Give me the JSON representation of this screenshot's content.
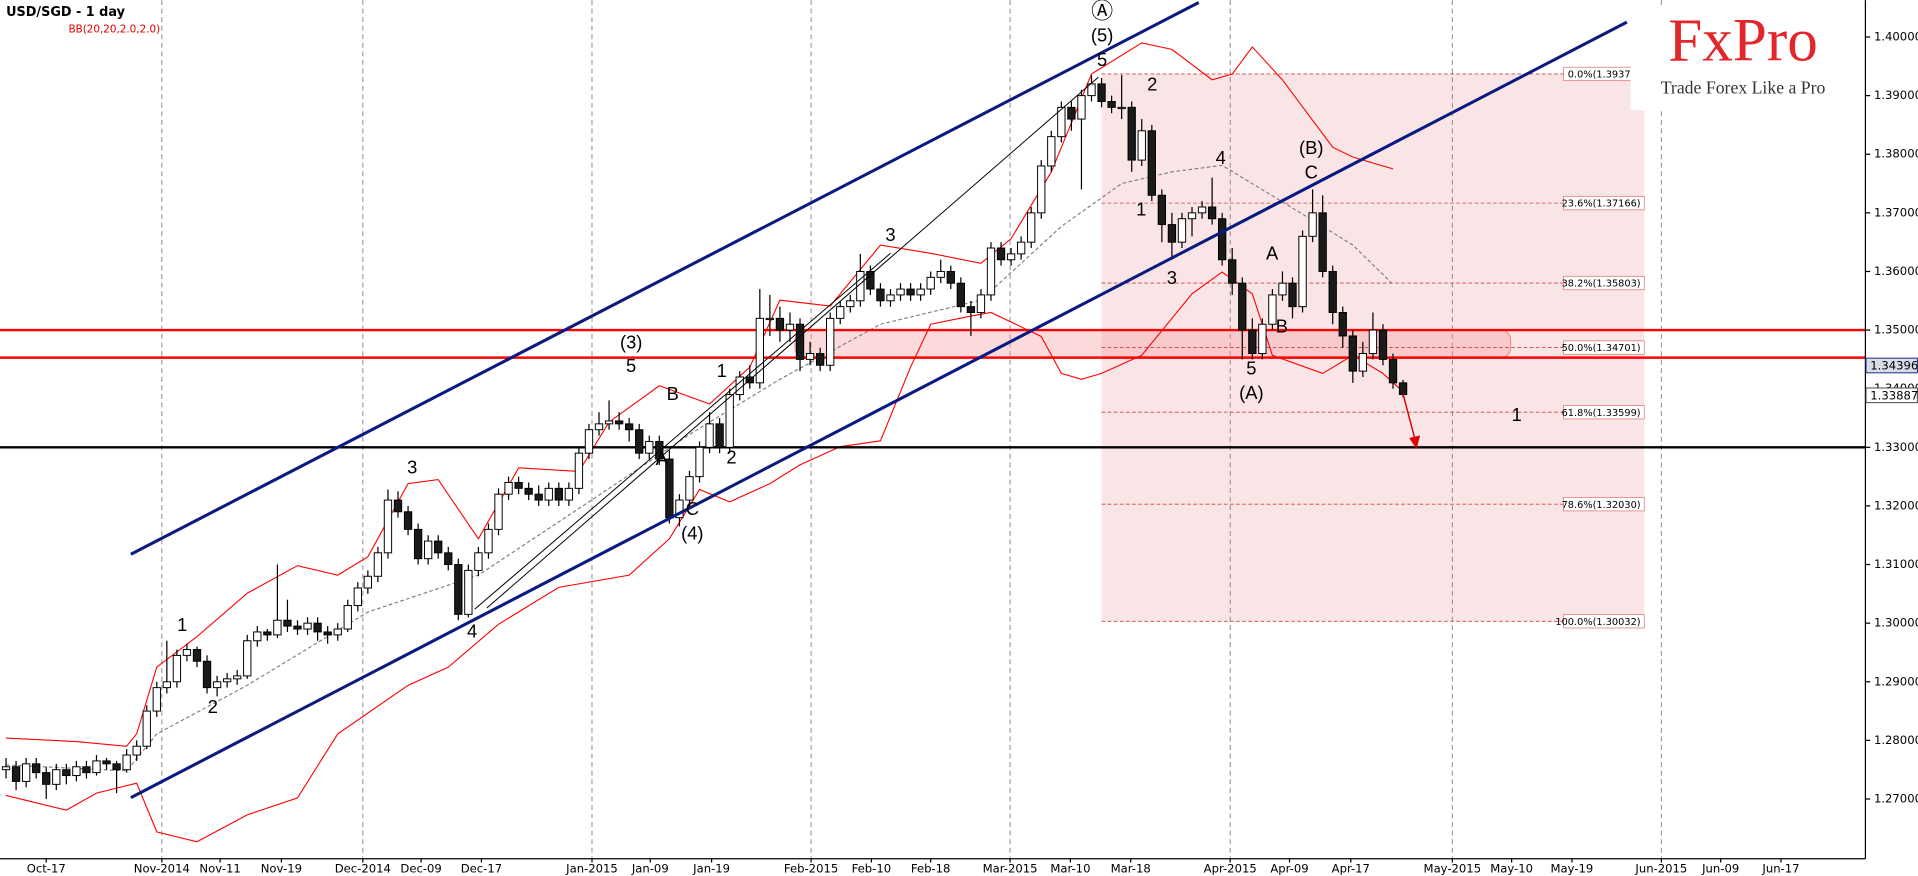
{
  "title": "USD/SGD - 1 day",
  "indicator": "BB(20,20,2.0,2.0)",
  "logo": {
    "name": "FxPro",
    "tagline": "Trade Forex Like a Pro"
  },
  "chart_data": {
    "type": "candlestick",
    "xlim": [
      -0.6,
      185
    ],
    "ylim": [
      1.2598,
      1.4063
    ],
    "xticks": [
      {
        "value": 4.0,
        "label": "Oct-17"
      },
      {
        "value": 15.5,
        "label": "Nov-2014",
        "major": true
      },
      {
        "value": 21.3,
        "label": "Nov-11"
      },
      {
        "value": 27.4,
        "label": "Nov-19"
      },
      {
        "value": 35.5,
        "label": "Dec-2014",
        "major": true
      },
      {
        "value": 41.3,
        "label": "Dec-09"
      },
      {
        "value": 47.3,
        "label": "Dec-17"
      },
      {
        "value": 58.3,
        "label": "Jan-2015",
        "major": true
      },
      {
        "value": 64.1,
        "label": "Jan-09"
      },
      {
        "value": 70.2,
        "label": "Jan-19"
      },
      {
        "value": 80.1,
        "label": "Feb-2015",
        "major": true
      },
      {
        "value": 86.1,
        "label": "Feb-10"
      },
      {
        "value": 92.0,
        "label": "Feb-18"
      },
      {
        "value": 99.9,
        "label": "Mar-2015",
        "major": true
      },
      {
        "value": 105.9,
        "label": "Mar-10"
      },
      {
        "value": 111.9,
        "label": "Mar-18"
      },
      {
        "value": 121.8,
        "label": "Apr-2015",
        "major": true
      },
      {
        "value": 127.7,
        "label": "Apr-09"
      },
      {
        "value": 133.8,
        "label": "Apr-17"
      },
      {
        "value": 143.9,
        "label": "May-2015",
        "major": true
      },
      {
        "value": 149.8,
        "label": "May-10"
      },
      {
        "value": 155.8,
        "label": "May-19"
      },
      {
        "value": 164.7,
        "label": "Jun-2015",
        "major": true
      },
      {
        "value": 170.6,
        "label": "Jun-09"
      },
      {
        "value": 176.6,
        "label": "Jun-17"
      }
    ],
    "yticks": [
      {
        "value": 1.27,
        "label": "1.27000"
      },
      {
        "value": 1.28,
        "label": "1.28000"
      },
      {
        "value": 1.29,
        "label": "1.29000"
      },
      {
        "value": 1.3,
        "label": "1.30000"
      },
      {
        "value": 1.31,
        "label": "1.31000"
      },
      {
        "value": 1.32,
        "label": "1.32000"
      },
      {
        "value": 1.33,
        "label": "1.33000"
      },
      {
        "value": 1.34,
        "label": "1.34000"
      },
      {
        "value": 1.35,
        "label": "1.35000"
      },
      {
        "value": 1.36,
        "label": "1.36000"
      },
      {
        "value": 1.37,
        "label": "1.37000"
      },
      {
        "value": 1.38,
        "label": "1.38000"
      },
      {
        "value": 1.39,
        "label": "1.39000"
      },
      {
        "value": 1.4,
        "label": "1.40000"
      }
    ],
    "colors": {
      "up": "#ffffff",
      "down": "#1a1a1a",
      "outline": "#000000",
      "band": "#ff0000",
      "mid": "#7a7a7a",
      "channel": "#0a1a80"
    },
    "candles": [
      [
        1.275,
        1.277,
        1.2735,
        1.2755
      ],
      [
        1.2755,
        1.2765,
        1.2715,
        1.273
      ],
      [
        1.273,
        1.277,
        1.272,
        1.276
      ],
      [
        1.276,
        1.277,
        1.2735,
        1.2745
      ],
      [
        1.2745,
        1.2755,
        1.27,
        1.2725
      ],
      [
        1.2725,
        1.276,
        1.2715,
        1.275
      ],
      [
        1.275,
        1.276,
        1.2725,
        1.274
      ],
      [
        1.274,
        1.2765,
        1.273,
        1.2755
      ],
      [
        1.2755,
        1.2765,
        1.2735,
        1.2745
      ],
      [
        1.2745,
        1.2775,
        1.274,
        1.2765
      ],
      [
        1.2765,
        1.277,
        1.275,
        1.276
      ],
      [
        1.276,
        1.2765,
        1.271,
        1.275
      ],
      [
        1.275,
        1.2785,
        1.2745,
        1.2775
      ],
      [
        1.2775,
        1.28,
        1.2765,
        1.279
      ],
      [
        1.279,
        1.286,
        1.2785,
        1.285
      ],
      [
        1.285,
        1.29,
        1.284,
        1.289
      ],
      [
        1.289,
        1.297,
        1.288,
        1.29
      ],
      [
        1.29,
        1.2955,
        1.289,
        1.2945
      ],
      [
        1.2945,
        1.2965,
        1.2935,
        1.2955
      ],
      [
        1.2955,
        1.296,
        1.2925,
        1.2935
      ],
      [
        1.2935,
        1.2945,
        1.288,
        1.289
      ],
      [
        1.289,
        1.291,
        1.2875,
        1.29
      ],
      [
        1.29,
        1.2915,
        1.289,
        1.2905
      ],
      [
        1.2905,
        1.292,
        1.2895,
        1.291
      ],
      [
        1.291,
        1.298,
        1.2905,
        1.297
      ],
      [
        1.297,
        1.2995,
        1.296,
        1.2985
      ],
      [
        1.2985,
        1.299,
        1.297,
        1.298
      ],
      [
        1.298,
        1.31,
        1.2975,
        1.3005
      ],
      [
        1.3005,
        1.304,
        1.2985,
        1.2995
      ],
      [
        1.2995,
        1.3005,
        1.298,
        1.299
      ],
      [
        1.299,
        1.301,
        1.298,
        1.3
      ],
      [
        1.3,
        1.301,
        1.297,
        1.2985
      ],
      [
        1.2985,
        1.2995,
        1.2965,
        1.298
      ],
      [
        1.298,
        1.3,
        1.297,
        1.299
      ],
      [
        1.299,
        1.304,
        1.2985,
        1.303
      ],
      [
        1.303,
        1.307,
        1.302,
        1.306
      ],
      [
        1.306,
        1.309,
        1.305,
        1.308
      ],
      [
        1.308,
        1.313,
        1.307,
        1.312
      ],
      [
        1.312,
        1.3228,
        1.311,
        1.321
      ],
      [
        1.321,
        1.3225,
        1.318,
        1.319
      ],
      [
        1.319,
        1.32,
        1.315,
        1.316
      ],
      [
        1.316,
        1.317,
        1.31,
        1.311
      ],
      [
        1.311,
        1.315,
        1.31,
        1.314
      ],
      [
        1.314,
        1.315,
        1.311,
        1.312
      ],
      [
        1.312,
        1.313,
        1.309,
        1.31
      ],
      [
        1.31,
        1.311,
        1.3005,
        1.3015
      ],
      [
        1.3015,
        1.31,
        1.301,
        1.309
      ],
      [
        1.309,
        1.313,
        1.308,
        1.312
      ],
      [
        1.312,
        1.317,
        1.311,
        1.316
      ],
      [
        1.316,
        1.323,
        1.315,
        1.322
      ],
      [
        1.322,
        1.325,
        1.321,
        1.324
      ],
      [
        1.324,
        1.325,
        1.322,
        1.323
      ],
      [
        1.323,
        1.324,
        1.321,
        1.322
      ],
      [
        1.322,
        1.3235,
        1.32,
        1.321
      ],
      [
        1.321,
        1.324,
        1.32,
        1.323
      ],
      [
        1.323,
        1.324,
        1.32,
        1.321
      ],
      [
        1.321,
        1.324,
        1.32,
        1.323
      ],
      [
        1.323,
        1.33,
        1.322,
        1.329
      ],
      [
        1.329,
        1.334,
        1.328,
        1.333
      ],
      [
        1.333,
        1.336,
        1.332,
        1.334
      ],
      [
        1.334,
        1.338,
        1.333,
        1.3345
      ],
      [
        1.3345,
        1.336,
        1.333,
        1.334
      ],
      [
        1.334,
        1.335,
        1.331,
        1.333
      ],
      [
        1.333,
        1.334,
        1.328,
        1.329
      ],
      [
        1.329,
        1.332,
        1.328,
        1.331
      ],
      [
        1.331,
        1.332,
        1.327,
        1.328
      ],
      [
        1.328,
        1.3295,
        1.317,
        1.318
      ],
      [
        1.318,
        1.322,
        1.3165,
        1.321
      ],
      [
        1.321,
        1.326,
        1.32,
        1.325
      ],
      [
        1.325,
        1.331,
        1.324,
        1.33
      ],
      [
        1.33,
        1.336,
        1.329,
        1.334
      ],
      [
        1.334,
        1.335,
        1.329,
        1.33
      ],
      [
        1.33,
        1.34,
        1.329,
        1.339
      ],
      [
        1.339,
        1.343,
        1.338,
        1.342
      ],
      [
        1.342,
        1.344,
        1.34,
        1.341
      ],
      [
        1.341,
        1.357,
        1.34,
        1.352
      ],
      [
        1.352,
        1.356,
        1.349,
        1.352
      ],
      [
        1.352,
        1.354,
        1.348,
        1.35
      ],
      [
        1.35,
        1.353,
        1.348,
        1.351
      ],
      [
        1.351,
        1.352,
        1.343,
        1.345
      ],
      [
        1.345,
        1.348,
        1.344,
        1.346
      ],
      [
        1.346,
        1.347,
        1.343,
        1.344
      ],
      [
        1.344,
        1.353,
        1.343,
        1.352
      ],
      [
        1.352,
        1.355,
        1.351,
        1.354
      ],
      [
        1.354,
        1.356,
        1.353,
        1.355
      ],
      [
        1.355,
        1.363,
        1.354,
        1.36
      ],
      [
        1.36,
        1.361,
        1.356,
        1.357
      ],
      [
        1.357,
        1.358,
        1.354,
        1.355
      ],
      [
        1.355,
        1.357,
        1.354,
        1.356
      ],
      [
        1.356,
        1.358,
        1.355,
        1.357
      ],
      [
        1.357,
        1.358,
        1.355,
        1.356
      ],
      [
        1.356,
        1.358,
        1.355,
        1.357
      ],
      [
        1.357,
        1.36,
        1.356,
        1.359
      ],
      [
        1.359,
        1.362,
        1.358,
        1.36
      ],
      [
        1.36,
        1.361,
        1.357,
        1.358
      ],
      [
        1.358,
        1.359,
        1.353,
        1.354
      ],
      [
        1.354,
        1.355,
        1.349,
        1.353
      ],
      [
        1.353,
        1.357,
        1.352,
        1.356
      ],
      [
        1.356,
        1.365,
        1.355,
        1.364
      ],
      [
        1.364,
        1.365,
        1.361,
        1.362
      ],
      [
        1.362,
        1.364,
        1.361,
        1.363
      ],
      [
        1.363,
        1.366,
        1.362,
        1.365
      ],
      [
        1.365,
        1.371,
        1.364,
        1.37
      ],
      [
        1.37,
        1.379,
        1.369,
        1.378
      ],
      [
        1.378,
        1.384,
        1.377,
        1.383
      ],
      [
        1.383,
        1.389,
        1.382,
        1.388
      ],
      [
        1.388,
        1.389,
        1.384,
        1.386
      ],
      [
        1.386,
        1.391,
        1.374,
        1.39
      ],
      [
        1.39,
        1.3935,
        1.389,
        1.392
      ],
      [
        1.392,
        1.393,
        1.388,
        1.389
      ],
      [
        1.389,
        1.39,
        1.387,
        1.388
      ],
      [
        1.388,
        1.3935,
        1.386,
        1.388
      ],
      [
        1.388,
        1.389,
        1.377,
        1.379
      ],
      [
        1.379,
        1.386,
        1.378,
        1.384
      ],
      [
        1.384,
        1.385,
        1.372,
        1.373
      ],
      [
        1.373,
        1.374,
        1.365,
        1.368
      ],
      [
        1.368,
        1.37,
        1.362,
        1.365
      ],
      [
        1.365,
        1.37,
        1.364,
        1.369
      ],
      [
        1.369,
        1.371,
        1.366,
        1.37
      ],
      [
        1.37,
        1.372,
        1.369,
        1.371
      ],
      [
        1.371,
        1.376,
        1.368,
        1.369
      ],
      [
        1.369,
        1.37,
        1.361,
        1.362
      ],
      [
        1.362,
        1.364,
        1.356,
        1.358
      ],
      [
        1.358,
        1.359,
        1.345,
        1.35
      ],
      [
        1.35,
        1.352,
        1.345,
        1.346
      ],
      [
        1.346,
        1.352,
        1.345,
        1.351
      ],
      [
        1.351,
        1.357,
        1.35,
        1.356
      ],
      [
        1.356,
        1.36,
        1.355,
        1.358
      ],
      [
        1.358,
        1.359,
        1.352,
        1.354
      ],
      [
        1.354,
        1.367,
        1.353,
        1.366
      ],
      [
        1.366,
        1.374,
        1.365,
        1.37
      ],
      [
        1.37,
        1.373,
        1.359,
        1.36
      ],
      [
        1.36,
        1.361,
        1.351,
        1.353
      ],
      [
        1.353,
        1.354,
        1.347,
        1.349
      ],
      [
        1.349,
        1.35,
        1.341,
        1.343
      ],
      [
        1.343,
        1.348,
        1.342,
        1.346
      ],
      [
        1.346,
        1.353,
        1.345,
        1.35
      ],
      [
        1.35,
        1.351,
        1.344,
        1.345
      ],
      [
        1.345,
        1.346,
        1.34,
        1.341
      ],
      [
        1.341,
        1.3415,
        1.3385,
        1.339
      ]
    ],
    "bands": {
      "upper": {
        "x": [
          0,
          7,
          12,
          13,
          15,
          19,
          24,
          29,
          33,
          36,
          40,
          43,
          47,
          51,
          57,
          60,
          65,
          70,
          74,
          77,
          82,
          87,
          92,
          97,
          100,
          104,
          108,
          113,
          116,
          120,
          122,
          124,
          127,
          132,
          134,
          138
        ],
        "values": [
          1.2804,
          1.2798,
          1.279,
          1.2811,
          1.2925,
          1.2977,
          1.3051,
          1.3098,
          1.3082,
          1.3113,
          1.3238,
          1.3245,
          1.3144,
          1.3265,
          1.3259,
          1.3343,
          1.3405,
          1.3374,
          1.3437,
          1.3551,
          1.3541,
          1.3645,
          1.3631,
          1.3614,
          1.3656,
          1.377,
          1.3937,
          1.399,
          1.3979,
          1.3927,
          1.3937,
          1.3983,
          1.3927,
          1.3812,
          1.3795,
          1.3775
        ]
      },
      "middle": {
        "x": [
          0,
          12,
          15,
          24,
          36,
          47,
          58,
          68,
          77,
          87,
          97,
          105,
          111,
          116,
          121,
          126,
          131,
          134,
          138
        ],
        "values": [
          1.2758,
          1.2748,
          1.2811,
          1.2894,
          1.3019,
          1.3082,
          1.3207,
          1.3322,
          1.3416,
          1.351,
          1.3551,
          1.3677,
          1.375,
          1.377,
          1.3781,
          1.3729,
          1.3677,
          1.3645,
          1.3578
        ]
      },
      "lower": {
        "x": [
          0,
          6,
          9,
          13,
          15,
          19,
          24,
          29,
          33,
          40,
          44,
          49,
          55,
          62,
          66,
          69,
          72,
          76,
          79,
          83,
          87,
          90,
          92,
          96,
          98,
          103,
          105,
          107,
          109,
          113,
          118,
          121,
          124,
          126,
          131,
          134,
          137,
          139
        ],
        "values": [
          1.2706,
          1.2681,
          1.271,
          1.2727,
          1.2644,
          1.2627,
          1.2673,
          1.2702,
          1.2811,
          1.2894,
          1.2925,
          1.2998,
          1.3061,
          1.3082,
          1.3144,
          1.3228,
          1.3207,
          1.3238,
          1.327,
          1.3301,
          1.3311,
          1.3437,
          1.351,
          1.3524,
          1.353,
          1.3489,
          1.3426,
          1.3416,
          1.3426,
          1.3457,
          1.3562,
          1.3599,
          1.3562,
          1.3457,
          1.3426,
          1.3457,
          1.3426,
          1.3395
        ]
      }
    },
    "levels": [
      {
        "value": 1.35,
        "color": "#ff0000"
      },
      {
        "value": 1.3453,
        "color": "#ff0000"
      },
      {
        "value": 1.33,
        "color": "#000000"
      }
    ],
    "zone": {
      "x": [
        78.5,
        149.7
      ],
      "range": [
        1.3453,
        1.35
      ]
    },
    "fibonacci": {
      "x": [
        109,
        163
      ],
      "levels": [
        {
          "value": 1.3937,
          "label": "0.0%(1.39370)"
        },
        {
          "value": 1.37166,
          "label": "23.6%(1.37166)"
        },
        {
          "value": 1.35803,
          "label": "38.2%(1.35803)"
        },
        {
          "value": 1.34701,
          "label": "50.0%(1.34701)"
        },
        {
          "value": 1.33599,
          "label": "61.8%(1.33599)"
        },
        {
          "value": 1.3203,
          "label": "78.6%(1.32030)"
        },
        {
          "value": 1.30032,
          "label": "100.0%(1.30032)"
        }
      ]
    },
    "price_labels": [
      {
        "value": 1.34396,
        "label": "1.34396"
      },
      {
        "value": 1.33887,
        "label": "1.33887"
      }
    ],
    "annotations": [
      "Ⓐ",
      "(5)",
      "5",
      "2",
      "1",
      "3",
      "4",
      "5",
      "(A)",
      "(B)",
      "C",
      "A",
      "B",
      "1",
      "3",
      "(3)",
      "5",
      "B",
      "1",
      "A",
      "2",
      "C",
      "(4)",
      "3",
      "4",
      "1",
      "2"
    ]
  }
}
